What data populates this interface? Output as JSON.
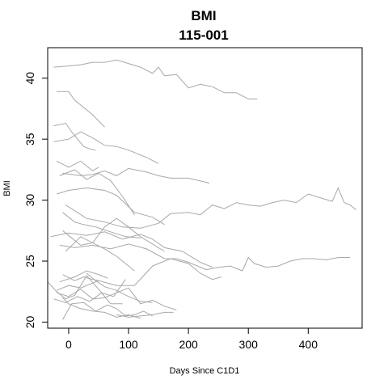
{
  "chart_data": {
    "type": "line",
    "title": "BMI",
    "subtitle": "115-001",
    "xlabel": "Days Since C1D1",
    "ylabel": "BMI",
    "xlim": [
      -35,
      490
    ],
    "ylim": [
      19.5,
      42.5
    ],
    "xticks": [
      0,
      100,
      200,
      300,
      400
    ],
    "yticks": [
      20,
      25,
      30,
      35,
      40
    ],
    "grid": false,
    "legend": "none",
    "line_color": "#a8a8a8",
    "series": [
      {
        "x": [
          -25,
          0,
          20,
          40,
          60,
          80,
          100,
          120,
          140,
          150,
          160,
          180,
          200,
          220,
          240,
          260,
          280,
          300,
          315
        ],
        "y": [
          40.9,
          41.0,
          41.1,
          41.3,
          41.3,
          41.5,
          41.2,
          40.9,
          40.4,
          40.9,
          40.2,
          40.3,
          39.2,
          39.5,
          39.3,
          38.8,
          38.8,
          38.3,
          38.3
        ]
      },
      {
        "x": [
          -20,
          0,
          10,
          20,
          40,
          60
        ],
        "y": [
          38.9,
          38.9,
          38.2,
          37.8,
          37.0,
          36.0
        ]
      },
      {
        "x": [
          -25,
          -5,
          5,
          15,
          25,
          35,
          45
        ],
        "y": [
          36.1,
          36.3,
          35.6,
          35.0,
          34.4,
          34.2,
          34.1
        ]
      },
      {
        "x": [
          -25,
          0,
          20,
          40,
          60,
          80,
          100,
          130,
          150
        ],
        "y": [
          34.8,
          35.0,
          35.6,
          35.1,
          34.5,
          34.4,
          34.1,
          33.5,
          33.0
        ]
      },
      {
        "x": [
          -20,
          0,
          20,
          40,
          50
        ],
        "y": [
          33.2,
          32.7,
          33.2,
          32.4,
          32.7
        ]
      },
      {
        "x": [
          -15,
          10,
          30,
          50,
          70,
          90,
          110
        ],
        "y": [
          32.0,
          32.5,
          31.7,
          32.2,
          31.6,
          30.3,
          28.8
        ]
      },
      {
        "x": [
          -10,
          20,
          40,
          60,
          80,
          100,
          130,
          150,
          170,
          200,
          235
        ],
        "y": [
          32.2,
          32.0,
          32.1,
          32.4,
          32.0,
          32.6,
          32.3,
          32.0,
          31.8,
          31.8,
          31.4
        ]
      },
      {
        "x": [
          -20,
          0,
          30,
          60,
          80,
          110,
          140,
          160
        ],
        "y": [
          30.5,
          30.8,
          31.0,
          30.8,
          30.4,
          29.0,
          28.6,
          28.0
        ]
      },
      {
        "x": [
          -10,
          10,
          25,
          45,
          70,
          95,
          120
        ],
        "y": [
          29.0,
          28.2,
          28.0,
          27.8,
          27.4,
          27.0,
          26.9
        ]
      },
      {
        "x": [
          -5,
          30,
          60,
          90,
          120,
          150,
          170,
          200,
          220,
          240,
          260,
          280,
          300,
          320,
          340,
          360,
          380,
          400,
          420,
          440,
          450,
          460,
          470,
          480
        ],
        "y": [
          29.6,
          28.5,
          28.2,
          27.8,
          27.7,
          28.1,
          28.9,
          29.0,
          28.8,
          29.6,
          29.3,
          29.8,
          29.6,
          29.5,
          29.8,
          30.0,
          29.8,
          30.5,
          30.2,
          29.9,
          31.0,
          29.8,
          29.6,
          29.2
        ]
      },
      {
        "x": [
          -10,
          0,
          20,
          40,
          60,
          80,
          110
        ],
        "y": [
          27.5,
          27.1,
          26.3,
          26.5,
          26.0,
          25.4,
          24.2
        ]
      },
      {
        "x": [
          -30,
          0,
          30,
          60,
          90,
          120,
          140,
          160,
          190,
          220,
          240
        ],
        "y": [
          27.0,
          27.3,
          27.1,
          27.4,
          26.8,
          27.2,
          26.8,
          26.1,
          25.8,
          24.9,
          24.5
        ]
      },
      {
        "x": [
          -15,
          10,
          40,
          70,
          100,
          130,
          160,
          180,
          200,
          230,
          250,
          270,
          290,
          300,
          310,
          330,
          350,
          370,
          390,
          410,
          430,
          450,
          470
        ],
        "y": [
          26.3,
          26.1,
          26.3,
          26.0,
          26.4,
          26.0,
          25.2,
          25.2,
          24.9,
          24.3,
          24.5,
          24.6,
          24.2,
          25.3,
          24.8,
          24.5,
          24.6,
          25.0,
          25.2,
          25.2,
          25.1,
          25.3,
          25.3
        ]
      },
      {
        "x": [
          -20,
          0,
          20,
          50,
          80,
          110,
          140,
          170,
          200,
          220,
          240,
          255
        ],
        "y": [
          22.6,
          23.0,
          22.8,
          23.4,
          23.0,
          23.0,
          24.6,
          25.2,
          24.8,
          24.0,
          23.5,
          23.7
        ]
      },
      {
        "x": [
          -10,
          10,
          25,
          40,
          50
        ],
        "y": [
          23.9,
          23.4,
          23.7,
          23.5,
          23.4
        ]
      },
      {
        "x": [
          -35,
          -20,
          -5,
          10,
          30,
          50,
          70,
          90
        ],
        "y": [
          23.3,
          22.5,
          21.9,
          22.2,
          23.8,
          22.7,
          21.5,
          21.5
        ]
      },
      {
        "x": [
          -20,
          0,
          20,
          40,
          60,
          80,
          100,
          120,
          140,
          160,
          180
        ],
        "y": [
          22.4,
          22.1,
          22.7,
          21.9,
          22.0,
          22.4,
          22.8,
          21.5,
          21.8,
          21.3,
          21.0
        ]
      },
      {
        "x": [
          -25,
          -5,
          15,
          35,
          55,
          75,
          95
        ],
        "y": [
          21.9,
          21.6,
          22.1,
          21.7,
          22.4,
          22.1,
          23.5
        ]
      },
      {
        "x": [
          -10,
          5,
          25,
          45,
          65,
          80,
          95,
          110,
          125,
          140
        ],
        "y": [
          20.2,
          21.5,
          21.6,
          20.9,
          21.4,
          21.1,
          20.5,
          20.6,
          20.9,
          20.5
        ]
      },
      {
        "x": [
          -10,
          0,
          20,
          40,
          60,
          80,
          100,
          120
        ],
        "y": [
          22.0,
          21.5,
          21.1,
          20.9,
          20.8,
          20.4,
          20.6,
          20.3
        ]
      },
      {
        "x": [
          30,
          45,
          60,
          80,
          100,
          120,
          140
        ],
        "y": [
          24.0,
          23.4,
          22.9,
          22.6,
          22.1,
          21.7,
          21.6
        ]
      },
      {
        "x": [
          80,
          100,
          120,
          140,
          160,
          175
        ],
        "y": [
          20.6,
          20.4,
          20.5,
          20.6,
          20.8,
          20.8
        ]
      },
      {
        "x": [
          -15,
          10,
          30,
          50,
          65
        ],
        "y": [
          23.3,
          23.7,
          24.2,
          23.9,
          23.6
        ]
      },
      {
        "x": [
          -5,
          20,
          40,
          60,
          80,
          100,
          120,
          140,
          160
        ],
        "y": [
          25.8,
          27.0,
          26.5,
          27.8,
          28.5,
          27.8,
          27.0,
          26.4,
          25.8
        ]
      }
    ]
  }
}
